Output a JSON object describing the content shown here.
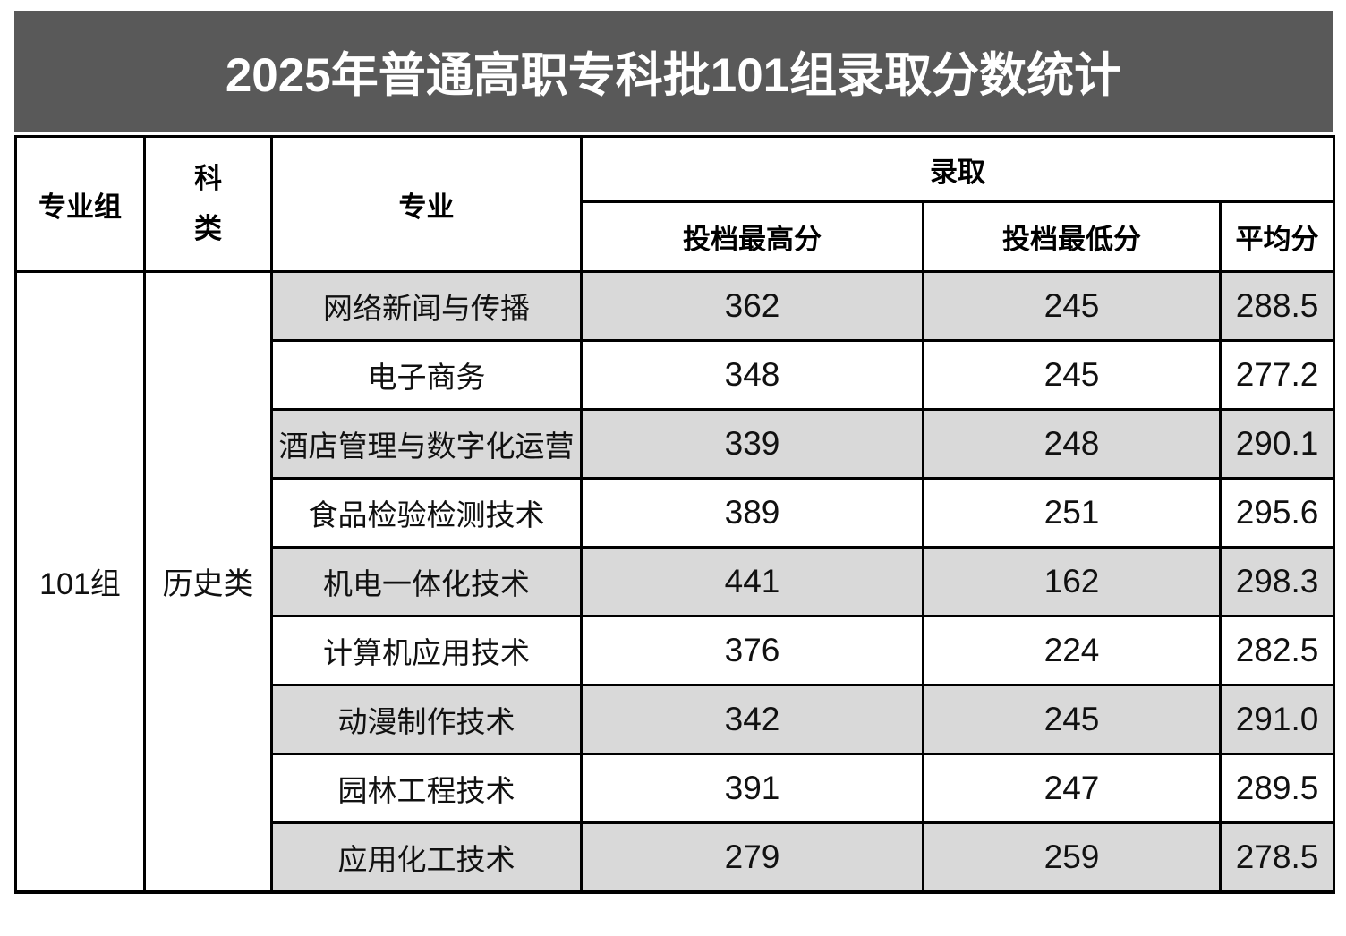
{
  "chart_data": {
    "type": "table",
    "title": "2025年普通高职专科批101组录取分数统计",
    "header": {
      "group": "专业组",
      "subject_type": "科类",
      "major": "专业",
      "admission": "录取",
      "max_label": "投档最高分",
      "min_label": "投档最低分",
      "avg_label": "平均分"
    },
    "group_value": "101组",
    "subject_type_value": "历史类",
    "rows": [
      {
        "major": "网络新闻与传播",
        "max": "362",
        "min": "245",
        "avg": "288.5"
      },
      {
        "major": "电子商务",
        "max": "348",
        "min": "245",
        "avg": "277.2"
      },
      {
        "major": "酒店管理与数字化运营",
        "max": "339",
        "min": "248",
        "avg": "290.1"
      },
      {
        "major": "食品检验检测技术",
        "max": "389",
        "min": "251",
        "avg": "295.6"
      },
      {
        "major": "机电一体化技术",
        "max": "441",
        "min": "162",
        "avg": "298.3"
      },
      {
        "major": "计算机应用技术",
        "max": "376",
        "min": "224",
        "avg": "282.5"
      },
      {
        "major": "动漫制作技术",
        "max": "342",
        "min": "245",
        "avg": "291.0"
      },
      {
        "major": "园林工程技术",
        "max": "391",
        "min": "247",
        "avg": "289.5"
      },
      {
        "major": "应用化工技术",
        "max": "279",
        "min": "259",
        "avg": "278.5"
      }
    ],
    "layout": {
      "striped_rows": "odd",
      "stripe_color": "#d9d9d9",
      "title_bg": "#595959",
      "title_text_color": "#ffffff",
      "border_color": "#000000"
    }
  }
}
